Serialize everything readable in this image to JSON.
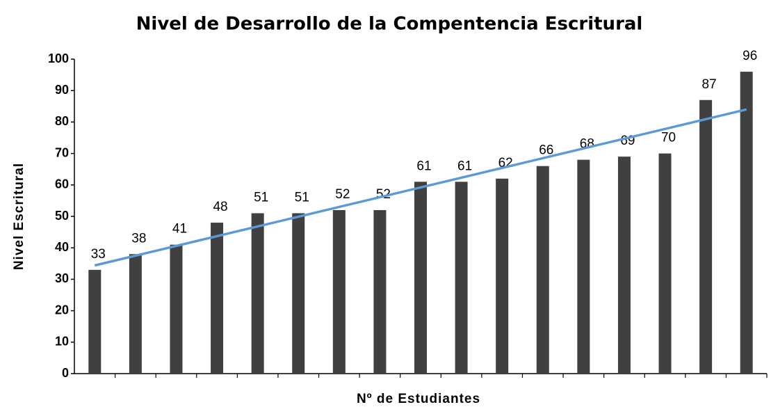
{
  "chart_data": {
    "type": "bar",
    "title": "Nivel de Desarrollo de la Compentencia Escritural",
    "x_label": "Nº de Estudiantes",
    "y_label": "Nivel Escritural",
    "categories": [
      null,
      null,
      null,
      null,
      null,
      null,
      null,
      null,
      null,
      null,
      null,
      null,
      null,
      null,
      null,
      null,
      null
    ],
    "values": [
      33,
      38,
      41,
      48,
      51,
      51,
      52,
      52,
      61,
      61,
      62,
      66,
      68,
      69,
      70,
      87,
      96
    ],
    "color": "#404040",
    "trendline": {
      "color": "#5b9bd5",
      "values": [
        34.4,
        84
      ]
    },
    "ylim": [
      0,
      100
    ],
    "yticks": [
      0,
      10,
      20,
      30,
      40,
      50,
      60,
      70,
      80,
      90,
      100
    ],
    "grid": false
  }
}
